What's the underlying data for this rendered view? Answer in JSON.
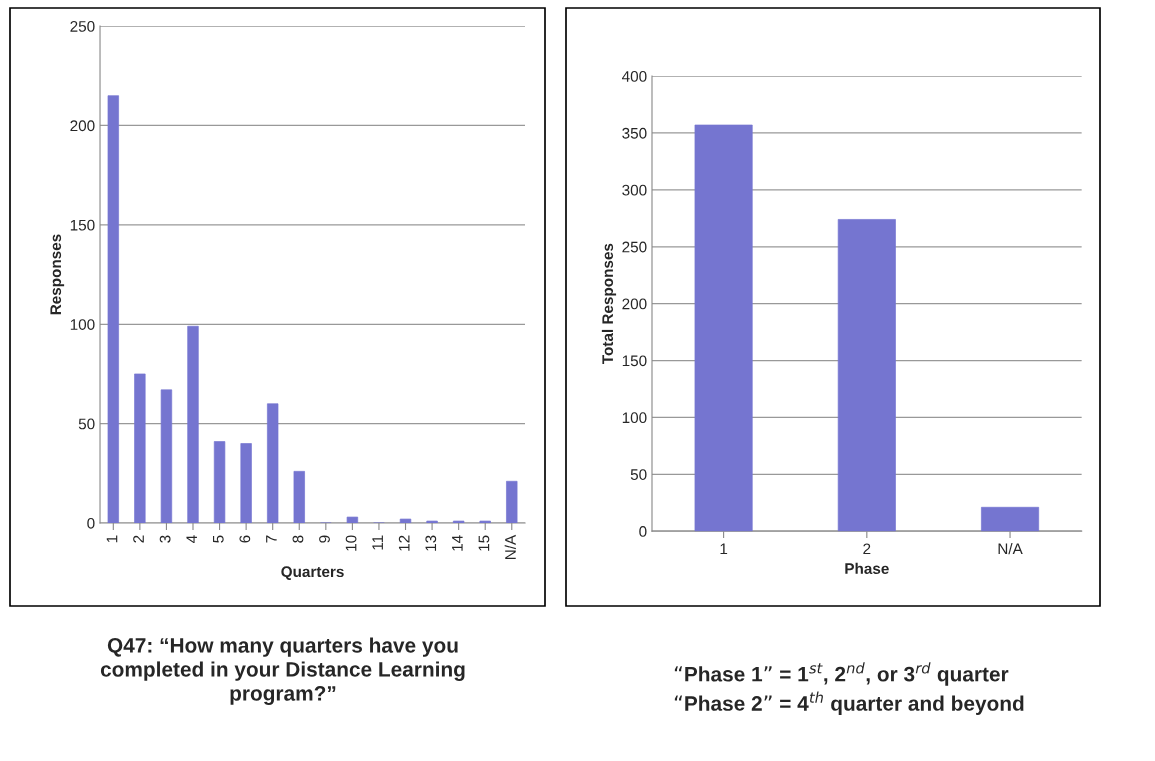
{
  "chart_data": [
    {
      "type": "bar",
      "categories": [
        "1",
        "2",
        "3",
        "4",
        "5",
        "6",
        "7",
        "8",
        "9",
        "10",
        "11",
        "12",
        "13",
        "14",
        "15",
        "N/A"
      ],
      "values": [
        215,
        75,
        67,
        99,
        41,
        40,
        60,
        26,
        0,
        3,
        0,
        2,
        1,
        1,
        1,
        21
      ],
      "color": "#7575d0",
      "xlabel": "Quarters",
      "ylabel": "Responses",
      "ylim": [
        0,
        250
      ],
      "yticks": [
        0,
        50,
        100,
        150,
        200,
        250
      ],
      "grid": "y",
      "annotations": [
        "Q47: “How many quarters have you\ncompleted in your Distance Learning\nprogram?”"
      ]
    },
    {
      "type": "bar",
      "categories": [
        "1",
        "2",
        "N/A"
      ],
      "values": [
        357,
        274,
        21
      ],
      "color": "#7575d0",
      "xlabel": "Phase",
      "ylabel": "Total Responses",
      "ylim": [
        0,
        400
      ],
      "yticks": [
        0,
        50,
        100,
        150,
        200,
        250,
        300,
        350,
        400
      ],
      "grid": "y",
      "annotations": [
        "“Phase 1” = 1$^{st}$, 2$^{nd}$, or 3$^{rd}$ quarter\n“Phase 2” = 4$^{th}$ quarter and beyond"
      ]
    }
  ]
}
